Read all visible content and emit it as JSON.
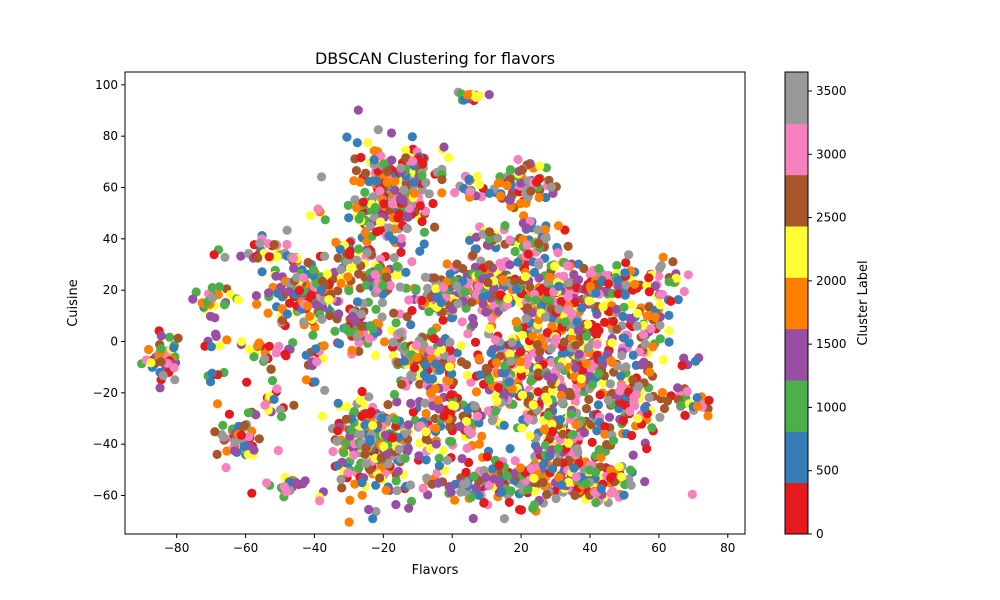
{
  "chart_data": {
    "type": "scatter",
    "title": "DBSCAN Clustering for flavors",
    "xlabel": "Flavors",
    "ylabel": "Cuisine",
    "xlim": [
      -95,
      85
    ],
    "ylim": [
      -75,
      105
    ],
    "xticks": [
      -80,
      -60,
      -40,
      -20,
      0,
      20,
      40,
      60,
      80
    ],
    "yticks": [
      -60,
      -40,
      -20,
      0,
      20,
      40,
      60,
      80,
      100
    ],
    "grid": false,
    "colorbar": {
      "label": "Cluster Label",
      "range": [
        0,
        3650
      ],
      "ticks": [
        0,
        500,
        1000,
        1500,
        2000,
        2500,
        3000,
        3500
      ],
      "colors": [
        "#e41a1c",
        "#377eb8",
        "#4daf4a",
        "#984ea3",
        "#ff7f00",
        "#ffff33",
        "#a65628",
        "#f781bf",
        "#999999"
      ]
    },
    "point_clusters": [
      {
        "x": -84,
        "y": -6,
        "spread": [
          3,
          5
        ],
        "n": 40
      },
      {
        "x": -70,
        "y": 16,
        "spread": [
          3,
          3
        ],
        "n": 25
      },
      {
        "x": -70,
        "y": -1,
        "spread": [
          2,
          2
        ],
        "n": 6
      },
      {
        "x": -69,
        "y": -15,
        "spread": [
          2,
          2
        ],
        "n": 6
      },
      {
        "x": -68,
        "y": 35,
        "spread": [
          1,
          1
        ],
        "n": 3
      },
      {
        "x": -62,
        "y": -37,
        "spread": [
          4,
          5
        ],
        "n": 55
      },
      {
        "x": -55,
        "y": -4,
        "spread": [
          3,
          4
        ],
        "n": 20
      },
      {
        "x": -52,
        "y": -22,
        "spread": [
          3,
          3
        ],
        "n": 14
      },
      {
        "x": -52,
        "y": 35,
        "spread": [
          4,
          3
        ],
        "n": 30
      },
      {
        "x": -48,
        "y": -56,
        "spread": [
          3,
          2
        ],
        "n": 22
      },
      {
        "x": -44,
        "y": 18,
        "spread": [
          6,
          7
        ],
        "n": 150
      },
      {
        "x": -40,
        "y": -10,
        "spread": [
          3,
          5
        ],
        "n": 18
      },
      {
        "x": -40,
        "y": 51,
        "spread": [
          1,
          1
        ],
        "n": 3
      },
      {
        "x": -38,
        "y": -61,
        "spread": [
          1,
          1
        ],
        "n": 3
      },
      {
        "x": -30,
        "y": 35,
        "spread": [
          4,
          3
        ],
        "n": 35
      },
      {
        "x": -28,
        "y": 5,
        "spread": [
          5,
          5
        ],
        "n": 60
      },
      {
        "x": -22,
        "y": -40,
        "spread": [
          7,
          9
        ],
        "n": 260
      },
      {
        "x": -18,
        "y": 55,
        "spread": [
          6,
          10
        ],
        "n": 220
      },
      {
        "x": -20,
        "y": 25,
        "spread": [
          4,
          4
        ],
        "n": 50
      },
      {
        "x": -12,
        "y": 68,
        "spread": [
          5,
          4
        ],
        "n": 50
      },
      {
        "x": -8,
        "y": -8,
        "spread": [
          5,
          6
        ],
        "n": 130
      },
      {
        "x": -2,
        "y": 18,
        "spread": [
          5,
          6
        ],
        "n": 110
      },
      {
        "x": 2,
        "y": -30,
        "spread": [
          6,
          8
        ],
        "n": 90
      },
      {
        "x": 5,
        "y": 60,
        "spread": [
          3,
          3
        ],
        "n": 20
      },
      {
        "x": 6,
        "y": 95,
        "spread": [
          2,
          1
        ],
        "n": 18
      },
      {
        "x": 10,
        "y": 40,
        "spread": [
          3,
          3
        ],
        "n": 20
      },
      {
        "x": 12,
        "y": 22,
        "spread": [
          6,
          6
        ],
        "n": 120
      },
      {
        "x": 14,
        "y": -55,
        "spread": [
          10,
          5
        ],
        "n": 150
      },
      {
        "x": 18,
        "y": -12,
        "spread": [
          6,
          10
        ],
        "n": 180
      },
      {
        "x": 20,
        "y": 60,
        "spread": [
          5,
          5
        ],
        "n": 70
      },
      {
        "x": 25,
        "y": 40,
        "spread": [
          4,
          5
        ],
        "n": 50
      },
      {
        "x": 28,
        "y": 15,
        "spread": [
          6,
          9
        ],
        "n": 160
      },
      {
        "x": 32,
        "y": -40,
        "spread": [
          6,
          10
        ],
        "n": 170
      },
      {
        "x": 38,
        "y": -5,
        "spread": [
          6,
          10
        ],
        "n": 180
      },
      {
        "x": 45,
        "y": 22,
        "spread": [
          6,
          5
        ],
        "n": 80
      },
      {
        "x": 44,
        "y": -55,
        "spread": [
          6,
          5
        ],
        "n": 80
      },
      {
        "x": 50,
        "y": -25,
        "spread": [
          6,
          8
        ],
        "n": 90
      },
      {
        "x": 55,
        "y": 5,
        "spread": [
          4,
          7
        ],
        "n": 60
      },
      {
        "x": 62,
        "y": 20,
        "spread": [
          3,
          5
        ],
        "n": 25
      },
      {
        "x": 66,
        "y": -22,
        "spread": [
          3,
          3
        ],
        "n": 18
      },
      {
        "x": 72,
        "y": -25,
        "spread": [
          2,
          2
        ],
        "n": 12
      },
      {
        "x": 68,
        "y": -8,
        "spread": [
          2,
          2
        ],
        "n": 5
      }
    ]
  }
}
